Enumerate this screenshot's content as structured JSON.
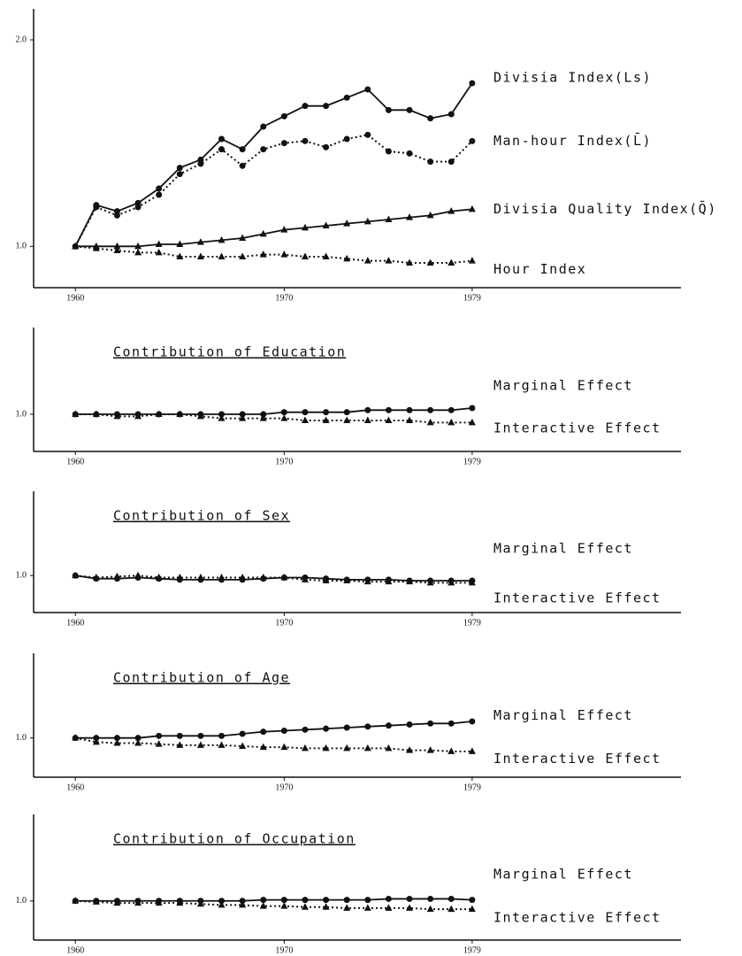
{
  "chart_data": [
    {
      "type": "line",
      "x": [
        1960,
        1961,
        1962,
        1963,
        1964,
        1965,
        1966,
        1967,
        1968,
        1969,
        1970,
        1971,
        1972,
        1973,
        1974,
        1975,
        1976,
        1977,
        1978,
        1979
      ],
      "xlim": [
        1958,
        1989
      ],
      "xticks": [
        1960,
        1970,
        1979
      ],
      "ylim": [
        0.8,
        2.15
      ],
      "yticks": [
        {
          "value": 1,
          "label": "1.0"
        },
        {
          "value": 2,
          "label": "2.0"
        }
      ],
      "series": [
        {
          "name": "Divisia Index(Ls)",
          "color": "#111111",
          "marker": "circle",
          "dash": "solid",
          "values": [
            1.0,
            1.2,
            1.17,
            1.21,
            1.28,
            1.38,
            1.42,
            1.52,
            1.47,
            1.58,
            1.63,
            1.68,
            1.68,
            1.72,
            1.76,
            1.66,
            1.66,
            1.62,
            1.64,
            1.79
          ]
        },
        {
          "name": "Man-hour Index(L̄)",
          "color": "#111111",
          "marker": "circle",
          "dash": "dotted",
          "values": [
            1.0,
            1.19,
            1.15,
            1.19,
            1.25,
            1.35,
            1.4,
            1.47,
            1.39,
            1.47,
            1.5,
            1.51,
            1.48,
            1.52,
            1.54,
            1.46,
            1.45,
            1.41,
            1.41,
            1.51
          ]
        },
        {
          "name": "Divisia Quality Index(Q̄)",
          "color": "#111111",
          "marker": "triangle",
          "dash": "solid",
          "values": [
            1.0,
            1.0,
            1.0,
            1.0,
            1.01,
            1.01,
            1.02,
            1.03,
            1.04,
            1.06,
            1.08,
            1.09,
            1.1,
            1.11,
            1.12,
            1.13,
            1.14,
            1.15,
            1.17,
            1.18
          ]
        },
        {
          "name": "Hour Index",
          "color": "#111111",
          "marker": "triangle",
          "dash": "dotted",
          "values": [
            1.0,
            0.99,
            0.98,
            0.97,
            0.97,
            0.95,
            0.95,
            0.95,
            0.95,
            0.96,
            0.96,
            0.95,
            0.95,
            0.94,
            0.93,
            0.93,
            0.92,
            0.92,
            0.92,
            0.93
          ]
        }
      ]
    },
    {
      "type": "line",
      "title": "Contribution of Education",
      "x": [
        1960,
        1961,
        1962,
        1963,
        1964,
        1965,
        1966,
        1967,
        1968,
        1969,
        1970,
        1971,
        1972,
        1973,
        1974,
        1975,
        1976,
        1977,
        1978,
        1979
      ],
      "xlim": [
        1958,
        1989
      ],
      "xticks": [
        1960,
        1970,
        1979
      ],
      "ylim": [
        0.82,
        1.42
      ],
      "yticks": [
        {
          "value": 1,
          "label": "1.0"
        }
      ],
      "series": [
        {
          "name": "Marginal Effect",
          "color": "#111111",
          "marker": "circle",
          "dash": "solid",
          "values": [
            1.0,
            1.0,
            1.0,
            1.0,
            1.0,
            1.0,
            1.0,
            1.0,
            1.0,
            1.0,
            1.01,
            1.01,
            1.01,
            1.01,
            1.02,
            1.02,
            1.02,
            1.02,
            1.02,
            1.03
          ]
        },
        {
          "name": "Interactive Effect",
          "color": "#111111",
          "marker": "triangle",
          "dash": "dotted",
          "values": [
            1.0,
            1.0,
            0.99,
            0.99,
            1.0,
            1.0,
            0.99,
            0.98,
            0.98,
            0.98,
            0.98,
            0.97,
            0.97,
            0.97,
            0.97,
            0.97,
            0.97,
            0.96,
            0.96,
            0.96
          ]
        }
      ]
    },
    {
      "type": "line",
      "title": "Contribution of Sex",
      "x": [
        1960,
        1961,
        1962,
        1963,
        1964,
        1965,
        1966,
        1967,
        1968,
        1969,
        1970,
        1971,
        1972,
        1973,
        1974,
        1975,
        1976,
        1977,
        1978,
        1979
      ],
      "xlim": [
        1958,
        1989
      ],
      "xticks": [
        1960,
        1970,
        1979
      ],
      "ylim": [
        0.82,
        1.41
      ],
      "yticks": [
        {
          "value": 1,
          "label": "1.0"
        }
      ],
      "series": [
        {
          "name": "Marginal Effect",
          "color": "#111111",
          "marker": "circle",
          "dash": "solid",
          "values": [
            1.0,
            0.985,
            0.985,
            0.99,
            0.985,
            0.98,
            0.98,
            0.98,
            0.98,
            0.985,
            0.99,
            0.99,
            0.985,
            0.98,
            0.98,
            0.98,
            0.975,
            0.975,
            0.975,
            0.975
          ]
        },
        {
          "name": "Interactive Effect",
          "color": "#111111",
          "marker": "triangle",
          "dash": "dotted",
          "values": [
            1.0,
            0.99,
            0.995,
            1.0,
            0.99,
            0.99,
            0.99,
            0.99,
            0.99,
            0.99,
            0.99,
            0.98,
            0.975,
            0.975,
            0.97,
            0.97,
            0.97,
            0.965,
            0.965,
            0.965
          ]
        }
      ]
    },
    {
      "type": "line",
      "title": "Contribution of Age",
      "x": [
        1960,
        1961,
        1962,
        1963,
        1964,
        1965,
        1966,
        1967,
        1968,
        1969,
        1970,
        1971,
        1972,
        1973,
        1974,
        1975,
        1976,
        1977,
        1978,
        1979
      ],
      "xlim": [
        1958,
        1989
      ],
      "xticks": [
        1960,
        1970,
        1979
      ],
      "ylim": [
        0.81,
        1.41
      ],
      "yticks": [
        {
          "value": 1,
          "label": "1.0"
        }
      ],
      "series": [
        {
          "name": "Marginal Effect",
          "color": "#111111",
          "marker": "circle",
          "dash": "solid",
          "values": [
            1.0,
            1.0,
            1.0,
            1.0,
            1.01,
            1.01,
            1.01,
            1.01,
            1.02,
            1.03,
            1.035,
            1.04,
            1.045,
            1.05,
            1.055,
            1.06,
            1.065,
            1.07,
            1.07,
            1.08
          ]
        },
        {
          "name": "Interactive Effect",
          "color": "#111111",
          "marker": "triangle",
          "dash": "dotted",
          "values": [
            1.0,
            0.98,
            0.975,
            0.975,
            0.97,
            0.965,
            0.965,
            0.965,
            0.96,
            0.955,
            0.955,
            0.95,
            0.95,
            0.95,
            0.95,
            0.95,
            0.94,
            0.94,
            0.935,
            0.935
          ]
        }
      ]
    },
    {
      "type": "line",
      "title": "Contribution of Occupation",
      "x": [
        1960,
        1961,
        1962,
        1963,
        1964,
        1965,
        1966,
        1967,
        1968,
        1969,
        1970,
        1971,
        1972,
        1973,
        1974,
        1975,
        1976,
        1977,
        1978,
        1979
      ],
      "xlim": [
        1958,
        1989
      ],
      "xticks": [
        1960,
        1970,
        1979
      ],
      "ylim": [
        0.81,
        1.42
      ],
      "yticks": [
        {
          "value": 1,
          "label": "1.0"
        }
      ],
      "series": [
        {
          "name": "Marginal Effect",
          "color": "#111111",
          "marker": "circle",
          "dash": "solid",
          "values": [
            1.0,
            1.0,
            1.0,
            1.0,
            1.0,
            1.0,
            1.0,
            1.0,
            1.0,
            1.005,
            1.005,
            1.005,
            1.005,
            1.005,
            1.005,
            1.01,
            1.01,
            1.01,
            1.01,
            1.005
          ]
        },
        {
          "name": "Interactive Effect",
          "color": "#111111",
          "marker": "triangle",
          "dash": "dotted",
          "values": [
            1.0,
            0.995,
            0.99,
            0.99,
            0.99,
            0.99,
            0.985,
            0.98,
            0.98,
            0.975,
            0.975,
            0.97,
            0.97,
            0.965,
            0.965,
            0.965,
            0.965,
            0.96,
            0.96,
            0.96
          ]
        }
      ]
    }
  ]
}
